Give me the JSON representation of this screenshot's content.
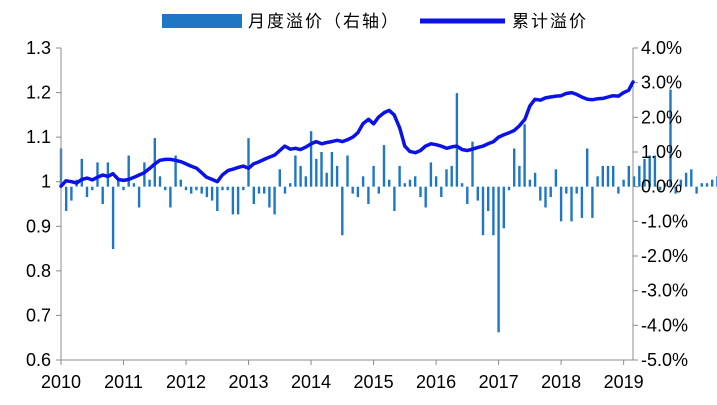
{
  "chart_data": {
    "type": "bar+line",
    "legend": [
      {
        "label": "月度溢价（右轴）",
        "kind": "bar",
        "color": "#1f77c4"
      },
      {
        "label": "累计溢价",
        "kind": "line",
        "color": "#0a12e8"
      }
    ],
    "legend_position": "top-center",
    "x_axis": {
      "ticks": [
        "2010",
        "2011",
        "2012",
        "2013",
        "2014",
        "2015",
        "2016",
        "2017",
        "2018",
        "2019"
      ],
      "range": [
        2010,
        2019.15
      ]
    },
    "left_axis": {
      "range": [
        0.6,
        1.3
      ],
      "ticks": [
        "0.6",
        "0.7",
        "0.8",
        "0.9",
        "1",
        "1.1",
        "1.2",
        "1.3"
      ]
    },
    "right_axis": {
      "range": [
        -5.0,
        4.0
      ],
      "unit": "%",
      "ticks": [
        "-5.0%",
        "-4.0%",
        "-3.0%",
        "-2.0%",
        "-1.0%",
        "0.0%",
        "1.0%",
        "2.0%",
        "3.0%",
        "4.0%"
      ]
    },
    "grid": false,
    "series": [
      {
        "name": "月度溢价（右轴）",
        "type": "bar",
        "axis": "right",
        "start": "2010-01",
        "values": [
          1.1,
          -0.7,
          -0.4,
          0.2,
          0.8,
          -0.3,
          -0.1,
          0.7,
          -0.5,
          0.7,
          -1.8,
          0.2,
          -0.1,
          0.9,
          0.1,
          -0.6,
          0.7,
          0.2,
          1.4,
          0.3,
          -0.1,
          -0.6,
          0.9,
          0.2,
          -0.1,
          -0.2,
          -0.1,
          -0.2,
          -0.3,
          -0.4,
          -0.7,
          -0.1,
          -0.1,
          -0.8,
          -0.8,
          -0.1,
          1.4,
          -0.5,
          -0.2,
          -0.2,
          -0.6,
          -0.8,
          0.5,
          -0.2,
          0.1,
          0.9,
          0.6,
          0.3,
          1.6,
          0.8,
          1.0,
          0.4,
          1.0,
          0.6,
          -1.4,
          0.9,
          -0.2,
          -0.3,
          0.3,
          -0.5,
          0.6,
          -0.2,
          1.2,
          0.2,
          -0.7,
          0.6,
          0.1,
          0.2,
          0.3,
          -0.3,
          -0.6,
          0.7,
          0.3,
          -0.3,
          0.5,
          0.6,
          2.7,
          0.1,
          -0.5,
          1.3,
          -0.4,
          -1.4,
          -0.7,
          -1.4,
          -4.2,
          -1.2,
          -0.1,
          1.1,
          0.6,
          1.8,
          0.2,
          0.4,
          -0.4,
          -0.6,
          -0.3,
          0.5,
          -1.0,
          -0.2,
          -1.0,
          -0.2,
          -0.9,
          1.1,
          -0.9,
          0.3,
          0.6,
          0.6,
          0.6,
          -0.2,
          0.2,
          0.6,
          0.3,
          0.6,
          0.8,
          0.9,
          0.9,
          -0.1,
          0.1,
          2.8,
          -0.2,
          0.2,
          0.4,
          0.5,
          -0.2,
          0.1,
          0.1,
          0.2,
          0.3,
          -0.1,
          -0.5,
          -0.4,
          -0.4,
          -0.1,
          0.2,
          -0.2,
          0.1,
          0.2,
          -0.1,
          0.5,
          -0.5,
          0.4,
          0.2,
          0.4,
          1.5
        ]
      },
      {
        "name": "累计溢价",
        "type": "line",
        "axis": "left",
        "points": [
          [
            2010.0,
            0.99
          ],
          [
            2010.08,
            1.002
          ],
          [
            2010.17,
            1.0
          ],
          [
            2010.25,
            0.997
          ],
          [
            2010.33,
            1.005
          ],
          [
            2010.42,
            1.008
          ],
          [
            2010.5,
            1.004
          ],
          [
            2010.58,
            1.01
          ],
          [
            2010.67,
            1.015
          ],
          [
            2010.75,
            1.012
          ],
          [
            2010.83,
            1.018
          ],
          [
            2010.92,
            1.005
          ],
          [
            2011.0,
            1.003
          ],
          [
            2011.08,
            1.005
          ],
          [
            2011.17,
            1.01
          ],
          [
            2011.25,
            1.015
          ],
          [
            2011.33,
            1.02
          ],
          [
            2011.42,
            1.03
          ],
          [
            2011.5,
            1.04
          ],
          [
            2011.58,
            1.048
          ],
          [
            2011.67,
            1.05
          ],
          [
            2011.75,
            1.05
          ],
          [
            2011.83,
            1.048
          ],
          [
            2011.92,
            1.045
          ],
          [
            2012.0,
            1.04
          ],
          [
            2012.08,
            1.035
          ],
          [
            2012.17,
            1.03
          ],
          [
            2012.25,
            1.02
          ],
          [
            2012.33,
            1.01
          ],
          [
            2012.42,
            1.005
          ],
          [
            2012.5,
            1.0
          ],
          [
            2012.58,
            1.015
          ],
          [
            2012.67,
            1.025
          ],
          [
            2012.75,
            1.028
          ],
          [
            2012.83,
            1.032
          ],
          [
            2012.92,
            1.035
          ],
          [
            2013.0,
            1.03
          ],
          [
            2013.08,
            1.04
          ],
          [
            2013.17,
            1.045
          ],
          [
            2013.25,
            1.05
          ],
          [
            2013.33,
            1.055
          ],
          [
            2013.42,
            1.06
          ],
          [
            2013.5,
            1.07
          ],
          [
            2013.58,
            1.08
          ],
          [
            2013.67,
            1.073
          ],
          [
            2013.75,
            1.075
          ],
          [
            2013.83,
            1.072
          ],
          [
            2013.92,
            1.078
          ],
          [
            2014.0,
            1.085
          ],
          [
            2014.08,
            1.09
          ],
          [
            2014.17,
            1.085
          ],
          [
            2014.25,
            1.088
          ],
          [
            2014.33,
            1.09
          ],
          [
            2014.42,
            1.093
          ],
          [
            2014.5,
            1.09
          ],
          [
            2014.58,
            1.094
          ],
          [
            2014.67,
            1.1
          ],
          [
            2014.75,
            1.11
          ],
          [
            2014.83,
            1.13
          ],
          [
            2014.92,
            1.14
          ],
          [
            2015.0,
            1.13
          ],
          [
            2015.08,
            1.145
          ],
          [
            2015.17,
            1.155
          ],
          [
            2015.25,
            1.16
          ],
          [
            2015.33,
            1.15
          ],
          [
            2015.42,
            1.12
          ],
          [
            2015.5,
            1.08
          ],
          [
            2015.58,
            1.068
          ],
          [
            2015.67,
            1.065
          ],
          [
            2015.75,
            1.07
          ],
          [
            2015.83,
            1.08
          ],
          [
            2015.92,
            1.085
          ],
          [
            2016.0,
            1.083
          ],
          [
            2016.08,
            1.08
          ],
          [
            2016.17,
            1.075
          ],
          [
            2016.25,
            1.078
          ],
          [
            2016.33,
            1.08
          ],
          [
            2016.42,
            1.072
          ],
          [
            2016.5,
            1.07
          ],
          [
            2016.58,
            1.073
          ],
          [
            2016.67,
            1.077
          ],
          [
            2016.75,
            1.08
          ],
          [
            2016.83,
            1.085
          ],
          [
            2016.92,
            1.09
          ],
          [
            2017.0,
            1.1
          ],
          [
            2017.08,
            1.105
          ],
          [
            2017.17,
            1.11
          ],
          [
            2017.25,
            1.115
          ],
          [
            2017.33,
            1.125
          ],
          [
            2017.42,
            1.14
          ],
          [
            2017.5,
            1.17
          ],
          [
            2017.58,
            1.185
          ],
          [
            2017.67,
            1.183
          ],
          [
            2017.75,
            1.188
          ],
          [
            2017.83,
            1.19
          ],
          [
            2017.92,
            1.192
          ],
          [
            2018.0,
            1.193
          ],
          [
            2018.08,
            1.198
          ],
          [
            2018.17,
            1.2
          ],
          [
            2018.25,
            1.196
          ],
          [
            2018.33,
            1.19
          ],
          [
            2018.42,
            1.185
          ],
          [
            2018.5,
            1.184
          ],
          [
            2018.58,
            1.186
          ],
          [
            2018.67,
            1.187
          ],
          [
            2018.75,
            1.19
          ],
          [
            2018.83,
            1.193
          ],
          [
            2018.92,
            1.192
          ],
          [
            2019.0,
            1.2
          ],
          [
            2019.08,
            1.205
          ],
          [
            2019.15,
            1.224
          ]
        ]
      }
    ]
  }
}
